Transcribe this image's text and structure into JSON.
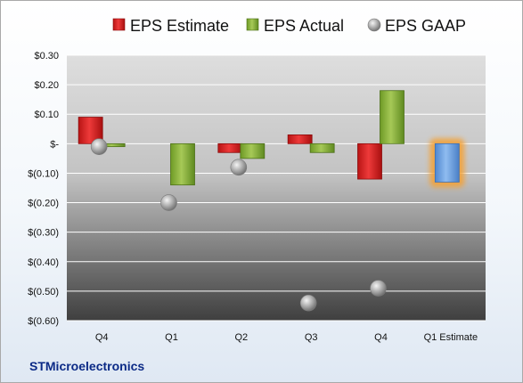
{
  "chart_data": {
    "type": "bar",
    "categories": [
      "Q4",
      "Q1",
      "Q2",
      "Q3",
      "Q4",
      "Q1 Estimate"
    ],
    "series": [
      {
        "name": "EPS Estimate",
        "type": "bar",
        "color": "#e02020",
        "values": [
          0.09,
          null,
          -0.03,
          0.03,
          -0.12,
          null
        ]
      },
      {
        "name": "EPS Actual",
        "type": "bar",
        "color": "#8db53b",
        "values": [
          -0.01,
          -0.14,
          -0.05,
          -0.03,
          0.18,
          null
        ]
      },
      {
        "name": "EPS GAAP",
        "type": "scatter",
        "color": "#b9b9b9",
        "values": [
          -0.01,
          -0.2,
          -0.08,
          -0.54,
          -0.49,
          null
        ]
      },
      {
        "name": "",
        "type": "bar",
        "highlight": true,
        "color": "#6fa3e0",
        "glow": "#f5a030",
        "values": [
          null,
          null,
          null,
          null,
          null,
          -0.13
        ]
      }
    ],
    "ylim": [
      -0.6,
      0.3
    ],
    "yticks": [
      0.3,
      0.2,
      0.1,
      0,
      -0.1,
      -0.2,
      -0.3,
      -0.4,
      -0.5,
      -0.6
    ],
    "ytick_labels": [
      "$0.30",
      "$0.20",
      "$0.10",
      "$-",
      "$(0.10)",
      "$(0.20)",
      "$(0.30)",
      "$(0.40)",
      "$(0.50)",
      "$(0.60)"
    ],
    "legend": {
      "position": "top",
      "items": [
        "EPS Estimate",
        "EPS Actual",
        "EPS GAAP"
      ]
    },
    "grid": true,
    "company": "STMicroelectronics"
  }
}
